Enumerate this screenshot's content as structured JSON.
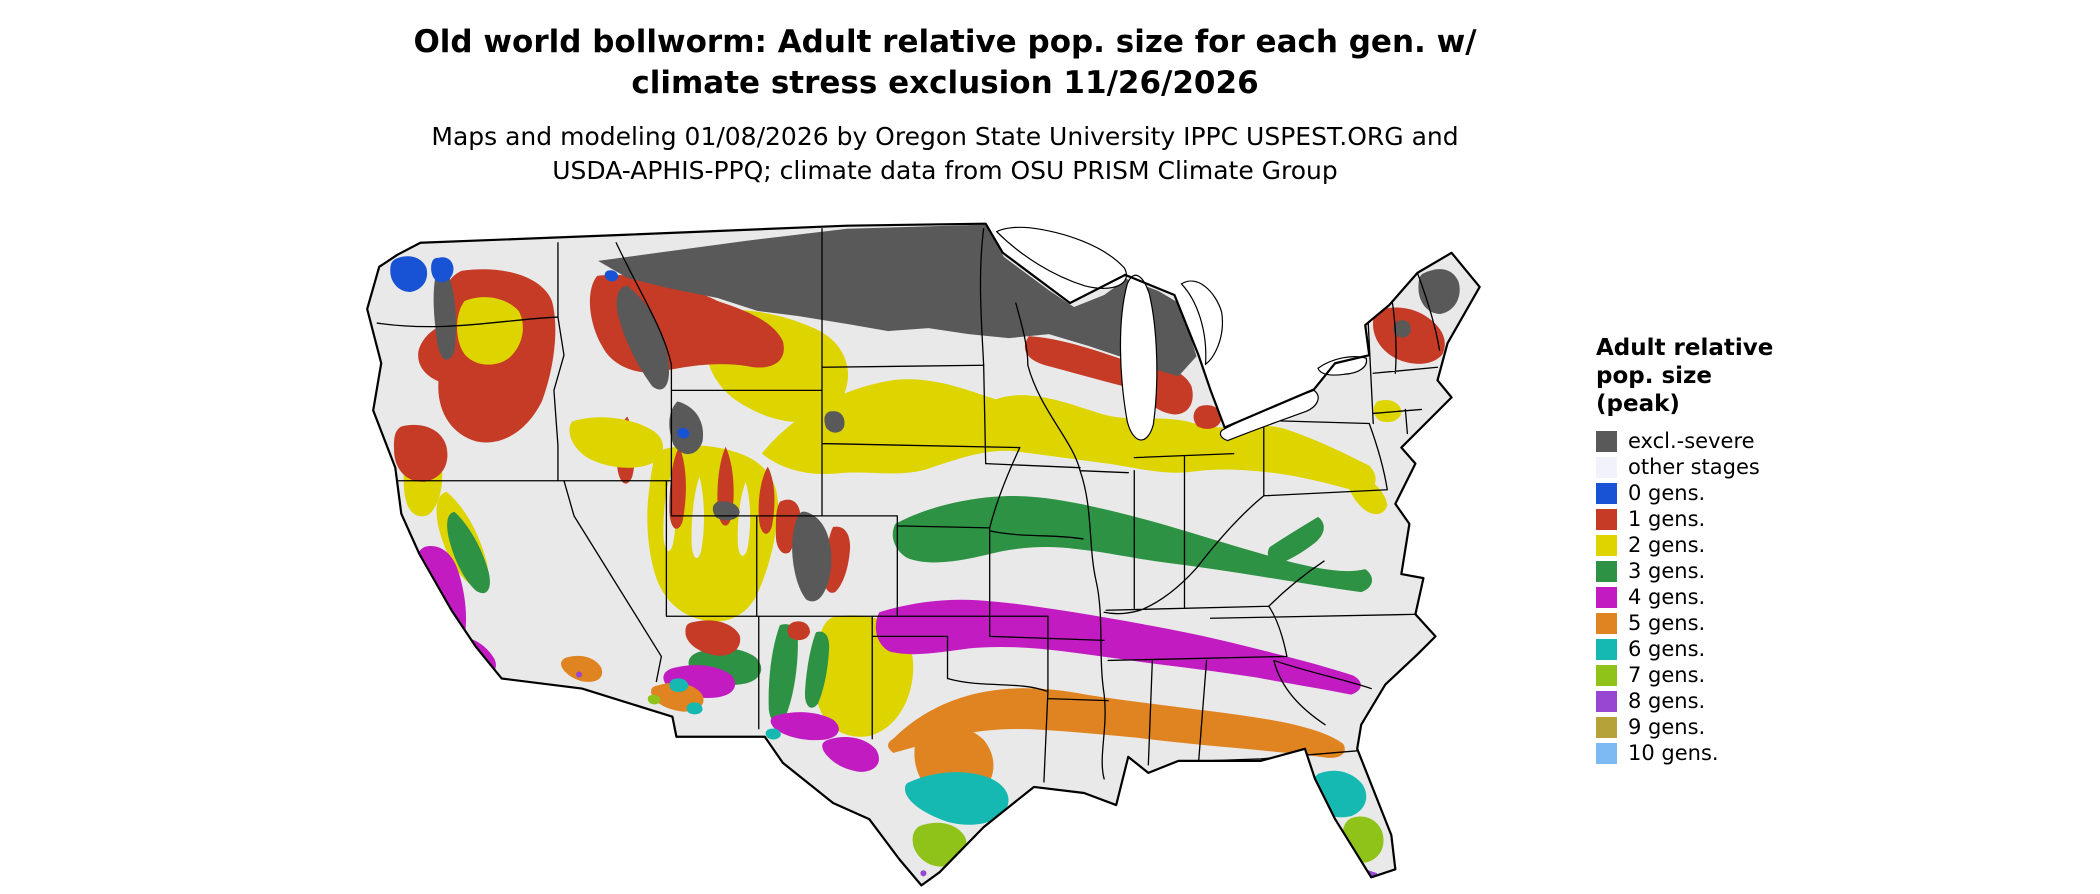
{
  "title": {
    "line1": "Old world bollworm: Adult relative pop. size for each gen. w/",
    "line2": "climate stress exclusion 11/26/2026"
  },
  "subtitle": {
    "line1": "Maps and modeling 01/08/2026 by Oregon State University IPPC USPEST.ORG and",
    "line2": "USDA-APHIS-PPQ; climate data from OSU PRISM Climate Group"
  },
  "legend": {
    "title_lines": [
      "Adult relative",
      "pop. size",
      "(peak)"
    ],
    "entries": [
      {
        "label": "excl.-severe",
        "color": "#595959"
      },
      {
        "label": "other stages",
        "color": "#f2f3fa"
      },
      {
        "label": "0 gens.",
        "color": "#1753d4"
      },
      {
        "label": "1 gens.",
        "color": "#c53b26"
      },
      {
        "label": "2 gens.",
        "color": "#ddd400"
      },
      {
        "label": "3 gens.",
        "color": "#2e9245"
      },
      {
        "label": "4 gens.",
        "color": "#c21bc2"
      },
      {
        "label": "5 gens.",
        "color": "#e08421"
      },
      {
        "label": "6 gens.",
        "color": "#16b8b2"
      },
      {
        "label": "7 gens.",
        "color": "#8fc31a"
      },
      {
        "label": "8 gens.",
        "color": "#9747d1"
      },
      {
        "label": "9 gens.",
        "color": "#b5a339"
      },
      {
        "label": "10 gens.",
        "color": "#7db9f2"
      }
    ]
  },
  "map": {
    "region": "Contiguous United States",
    "background": "#e9e9e9",
    "border_color": "#000000"
  }
}
